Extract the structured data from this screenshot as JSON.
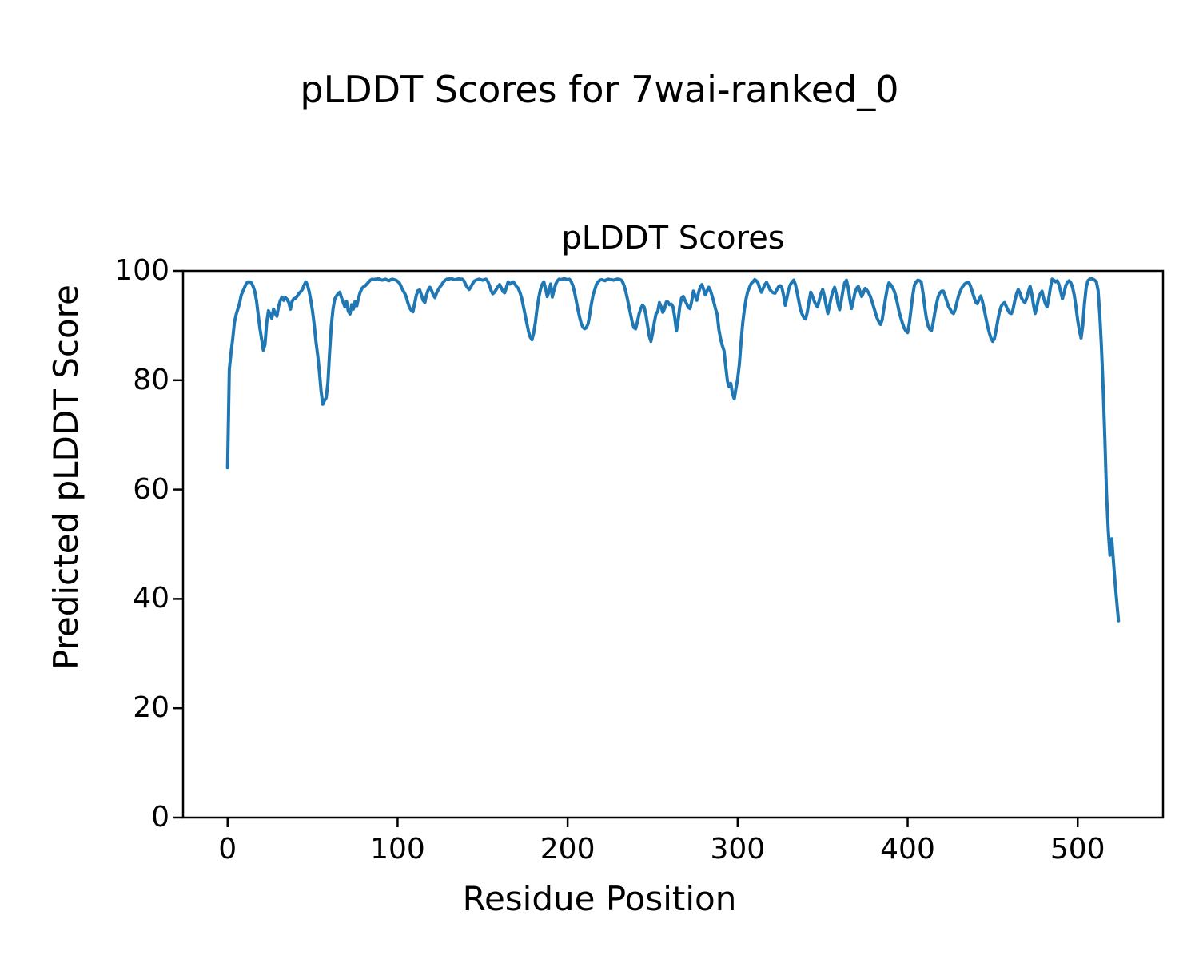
{
  "chart_data": {
    "type": "line",
    "suptitle": "pLDDT Scores for 7wai-ranked_0",
    "title": "pLDDT Scores",
    "xlabel": "Residue Position",
    "ylabel": "Predicted pLDDT Score",
    "xlim": [
      -26.2,
      550.2
    ],
    "ylim": [
      0,
      100
    ],
    "xticks": [
      0,
      100,
      200,
      300,
      400,
      500
    ],
    "yticks": [
      0,
      20,
      40,
      60,
      80,
      100
    ],
    "xtick_labels": [
      "0",
      "100",
      "200",
      "300",
      "400",
      "500"
    ],
    "ytick_labels": [
      "0",
      "20",
      "40",
      "60",
      "80",
      "100"
    ],
    "grid": false,
    "legend": null,
    "line_color": "#1f77b4",
    "series": [
      {
        "name": "pLDDT",
        "x_start": 0,
        "x_step": 1,
        "values": [
          64,
          82,
          85,
          87.5,
          90.5,
          92,
          93,
          94,
          95.5,
          96.3,
          97,
          97.7,
          98,
          98,
          97.8,
          97.2,
          96.2,
          94.5,
          92,
          89.5,
          87.5,
          85.5,
          86.5,
          90.5,
          92.7,
          92,
          91.3,
          93,
          92.2,
          91.7,
          93.5,
          94.6,
          95.2,
          94.6,
          95.1,
          94.8,
          94.2,
          93,
          94.5,
          94.9,
          95,
          95.4,
          95.9,
          96.2,
          96.6,
          97.4,
          98,
          97.4,
          96.2,
          94.5,
          92.5,
          90,
          87,
          84.5,
          81.5,
          78,
          75.6,
          76.3,
          76.8,
          79.5,
          85,
          90,
          93,
          94.8,
          95.4,
          95.8,
          96.1,
          95.1,
          94.2,
          93.4,
          94.4,
          92.6,
          92.1,
          93.8,
          93,
          94.4,
          93.6,
          95,
          96.1,
          96.8,
          97.1,
          97.3,
          97.6,
          98,
          98.3,
          98.5,
          98.4,
          98.5,
          98.5,
          98.6,
          98.4,
          98.3,
          98.4,
          98.5,
          98.3,
          98.2,
          98.4,
          98.5,
          98.4,
          98.3,
          98.1,
          97.8,
          97.2,
          96.5,
          96,
          95.3,
          94.2,
          93.3,
          92.8,
          92.5,
          94,
          95.5,
          96.4,
          96.5,
          95.6,
          94.6,
          94.2,
          95.6,
          96.5,
          97,
          96.4,
          95.6,
          95.1,
          96,
          96.6,
          97.1,
          97.5,
          98,
          98.3,
          98.5,
          98.5,
          98.6,
          98.6,
          98.4,
          98.4,
          98.5,
          98.6,
          98.5,
          98.5,
          98.2,
          97.5,
          97,
          96.6,
          97,
          97.6,
          98.1,
          98.3,
          98.4,
          98.5,
          98.4,
          98.3,
          98.4,
          98.5,
          98.1,
          97.4,
          96.4,
          95.8,
          96.1,
          96.6,
          97.1,
          97.5,
          96.9,
          96.2,
          96,
          97,
          98,
          97.6,
          97.8,
          98,
          97.6,
          97.1,
          96.8,
          96,
          95,
          93.5,
          91.9,
          90.4,
          88.9,
          87.9,
          87.4,
          88.6,
          90.5,
          93,
          95.1,
          96.6,
          97.5,
          98,
          96.8,
          95.3,
          96.2,
          97.6,
          95.2,
          96.5,
          97.6,
          98.2,
          98.5,
          98.4,
          98.5,
          98.6,
          98.5,
          98.4,
          98.5,
          98.1,
          97.4,
          96.2,
          94.6,
          93,
          91.6,
          90.4,
          89.7,
          89.4,
          89.6,
          90.3,
          92,
          94,
          95.6,
          96.6,
          97.6,
          98,
          98.3,
          98.4,
          98.3,
          98.2,
          98.4,
          98.5,
          98.4,
          98.4,
          98.3,
          98.4,
          98.5,
          98.5,
          98.4,
          98.2,
          97.5,
          96.5,
          95.1,
          93.6,
          92.1,
          90.6,
          89.6,
          89.4,
          90.6,
          92.1,
          93.1,
          93.7,
          93.4,
          92,
          90.1,
          88.1,
          87.1,
          88.6,
          90.6,
          92.1,
          92.6,
          94.2,
          93.4,
          92.4,
          93.1,
          94.3,
          94.3,
          93.8,
          93.9,
          93.4,
          91.5,
          89,
          91,
          93.5,
          95,
          95.3,
          94.6,
          94,
          93.3,
          93.1,
          94.5,
          96.3,
          95.4,
          94.6,
          96,
          97,
          97.5,
          96.6,
          95.6,
          96.3,
          97,
          96.4,
          95.4,
          94.3,
          93,
          92,
          89.2,
          87.5,
          86.3,
          85.4,
          82.5,
          79.8,
          78.8,
          79.4,
          77.5,
          76.6,
          78.5,
          80.2,
          83,
          87,
          90.5,
          93,
          95,
          96.3,
          97,
          97.7,
          98,
          98.4,
          98.2,
          97.8,
          96.8,
          96.1,
          96.8,
          97.5,
          97.9,
          97.3,
          96.6,
          96.2,
          96,
          95.9,
          96.5,
          97.1,
          97.3,
          97,
          95.5,
          93.7,
          95.1,
          96.6,
          97.5,
          98,
          98.3,
          97.5,
          96,
          94.4,
          92.9,
          92,
          91.4,
          91.2,
          92.5,
          94.5,
          96.1,
          95.4,
          94.5,
          93.8,
          93.4,
          94.6,
          95.8,
          96.6,
          95.4,
          93.8,
          92.2,
          93.6,
          95.1,
          96.2,
          97,
          95.8,
          94,
          92.9,
          94.6,
          96.5,
          97.8,
          98.3,
          97,
          94.8,
          93.1,
          94.5,
          96,
          96.8,
          97.2,
          96.2,
          95.3,
          96,
          96.8,
          96.5,
          96,
          95.4,
          94.4,
          93.4,
          92.4,
          91.4,
          90.7,
          90.2,
          91,
          93,
          95,
          96.8,
          97.8,
          97.5,
          97,
          96.4,
          95.4,
          94,
          92.5,
          91.4,
          90.4,
          89.5,
          89,
          88.7,
          90.5,
          93,
          95.5,
          97.4,
          98,
          98.3,
          98.2,
          98,
          96,
          93.5,
          91.4,
          90,
          89.3,
          89.1,
          90.5,
          92.4,
          94,
          95.3,
          96,
          96.3,
          96.3,
          95.5,
          94.5,
          93.5,
          93,
          92.4,
          92.2,
          93,
          94.3,
          95.5,
          96.3,
          97,
          97.4,
          97.7,
          97.9,
          97.9,
          97.2,
          96.2,
          95.2,
          94.3,
          94,
          94.8,
          95.4,
          94.4,
          93,
          91.4,
          89.9,
          88.7,
          87.7,
          87.1,
          87.6,
          89.1,
          91,
          92.5,
          93.5,
          94,
          94.2,
          93.5,
          92.8,
          92.3,
          92.2,
          93,
          94.5,
          95.8,
          96.6,
          96,
          95,
          94.5,
          94.2,
          95,
          96.2,
          97.2,
          95.8,
          93.8,
          92.2,
          93.5,
          95,
          95.8,
          96.3,
          95,
          94,
          93.4,
          95,
          97,
          98.5,
          98.3,
          98,
          98.2,
          97.5,
          96.2,
          94.9,
          96,
          97.3,
          98,
          98.2,
          97.8,
          97,
          95.5,
          93.4,
          91,
          89,
          87.7,
          90,
          94,
          97,
          98.2,
          98.5,
          98.6,
          98.5,
          98.3,
          98,
          96.5,
          92,
          86,
          78.5,
          69,
          59,
          52.5,
          48,
          51,
          47,
          43,
          39.5,
          36
        ]
      }
    ]
  }
}
